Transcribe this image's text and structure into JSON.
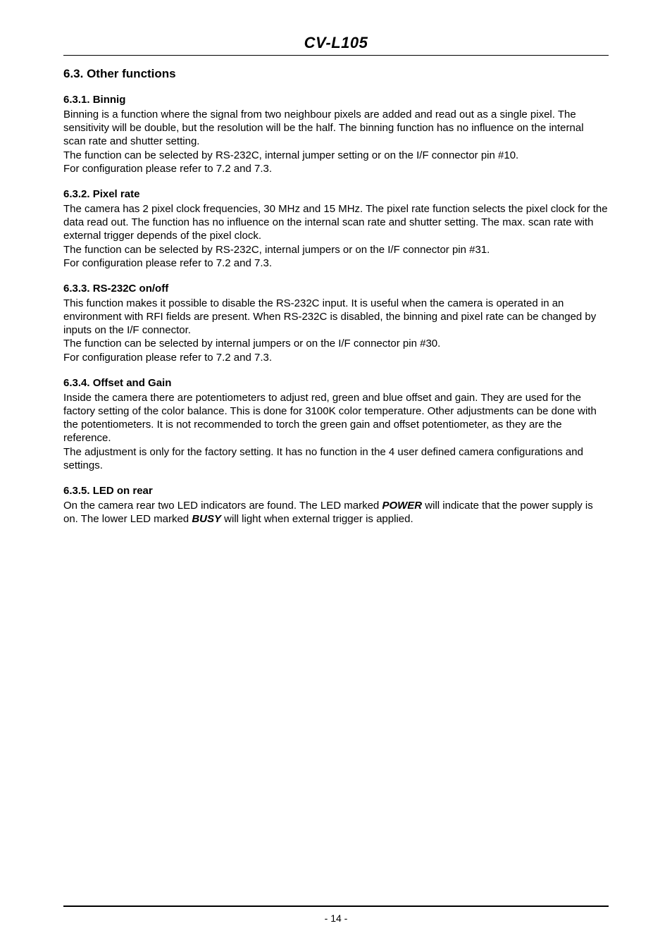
{
  "doc_title": "CV-L105",
  "page_number": "- 14 -",
  "sections": {
    "s63": {
      "heading": "6.3. Other functions",
      "s631": {
        "heading": "6.3.1. Binnig",
        "para1": "Binning is a function where the signal from two neighbour pixels are added and read out as a single pixel. The sensitivity will be double, but the resolution will be the half. The binning function has no influence on the internal scan rate and shutter setting.",
        "para2": "The function can be selected by RS-232C, internal jumper setting or on the I/F connector pin #10.",
        "para3": "For configuration please refer to 7.2 and 7.3."
      },
      "s632": {
        "heading": "6.3.2. Pixel rate",
        "para1": "The camera has 2 pixel clock frequencies, 30 MHz and 15 MHz. The pixel rate function selects the pixel clock for the data read out. The function has no influence on the internal scan rate and shutter setting. The max. scan rate with external trigger depends of the pixel clock.",
        "para2": "The function can be selected by RS-232C, internal jumpers or on the I/F connector pin #31.",
        "para3": "For configuration please refer to 7.2 and 7.3."
      },
      "s633": {
        "heading": "6.3.3. RS-232C on/off",
        "para1": "This function makes it possible to disable the RS-232C input. It is useful when the camera is operated in an environment with RFI fields are present. When RS-232C is disabled, the binning and pixel rate can be changed by inputs on the I/F connector.",
        "para2": "The function can be selected by internal jumpers or on the I/F connector pin #30.",
        "para3": "For configuration please refer to 7.2 and 7.3."
      },
      "s634": {
        "heading": "6.3.4. Offset and Gain",
        "para1": "Inside the camera there are potentiometers to adjust red, green and blue offset and gain. They are used for the factory setting of the color balance. This is done for 3100K color temperature. Other adjustments can be done with the potentiometers. It is not recommended to torch the green gain and offset potentiometer, as they are the reference.",
        "para2": "The adjustment is only for the factory setting. It has no function in the 4 user defined camera configurations and settings."
      },
      "s635": {
        "heading": "6.3.5. LED on rear",
        "para_pre": "On the camera rear two LED indicators are found. The LED marked ",
        "power": "POWER",
        "para_mid": " will indicate that the power supply is on. The lower LED marked ",
        "busy": "BUSY",
        "para_post": " will light when external trigger is applied."
      }
    }
  }
}
